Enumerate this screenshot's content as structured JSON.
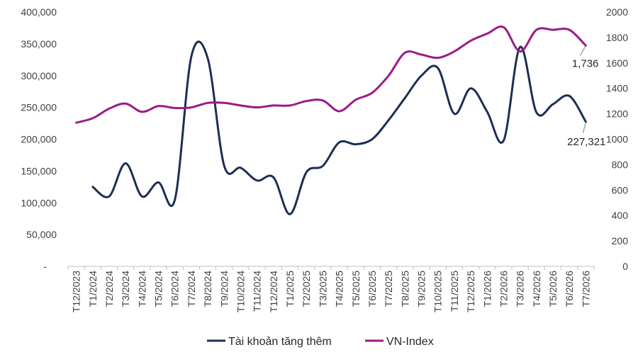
{
  "chart_data": {
    "type": "line",
    "categories": [
      "T12/2023",
      "T1/2024",
      "T2/2024",
      "T3/2024",
      "T4/2024",
      "T5/2024",
      "T6/2024",
      "T7/2024",
      "T8/2024",
      "T9/2024",
      "T10/2024",
      "T11/2024",
      "T12/2024",
      "T1/2025",
      "T2/2025",
      "T3/2025",
      "T4/2025",
      "T5/2025",
      "T6/2025",
      "T7/2025",
      "T8/2025",
      "T9/2025",
      "T10/2025",
      "T11/2025",
      "T12/2025",
      "T1/2026",
      "T2/2026",
      "T3/2026",
      "T4/2026",
      "T5/2026",
      "T6/2026",
      "T7/2026"
    ],
    "left_axis": {
      "min": 0,
      "max": 400000,
      "ticks": [
        "-",
        "50,000",
        "100,000",
        "150,000",
        "200,000",
        "250,000",
        "300,000",
        "350,000",
        "400,000"
      ]
    },
    "right_axis": {
      "min": 0,
      "max": 2000,
      "ticks": [
        "0",
        "200",
        "400",
        "600",
        "800",
        "1000",
        "1200",
        "1400",
        "1600",
        "1800",
        "2000"
      ]
    },
    "series": [
      {
        "name": "Tài khoản tăng thêm",
        "axis": "left",
        "color": "#1c2f52",
        "values": [
          null,
          125000,
          110000,
          162000,
          110000,
          132000,
          105000,
          330000,
          327000,
          158000,
          155000,
          135000,
          140000,
          82000,
          148000,
          158000,
          195000,
          192000,
          200000,
          230000,
          265000,
          300000,
          312000,
          240000,
          280000,
          243000,
          198000,
          345000,
          242000,
          255000,
          268000,
          227321
        ]
      },
      {
        "name": "VN-Index",
        "axis": "right",
        "color": "#9b1b87",
        "values": [
          1130,
          1165,
          1240,
          1280,
          1215,
          1260,
          1245,
          1250,
          1285,
          1285,
          1265,
          1250,
          1265,
          1265,
          1300,
          1305,
          1220,
          1310,
          1365,
          1500,
          1680,
          1665,
          1640,
          1690,
          1775,
          1830,
          1880,
          1690,
          1860,
          1860,
          1860,
          1736
        ]
      }
    ],
    "annotations": [
      {
        "series": "VN-Index",
        "text": "1,736"
      },
      {
        "series": "Tài khoản tăng thêm",
        "text": "227,321"
      }
    ],
    "legend": {
      "position": "bottom"
    },
    "grid": false
  }
}
